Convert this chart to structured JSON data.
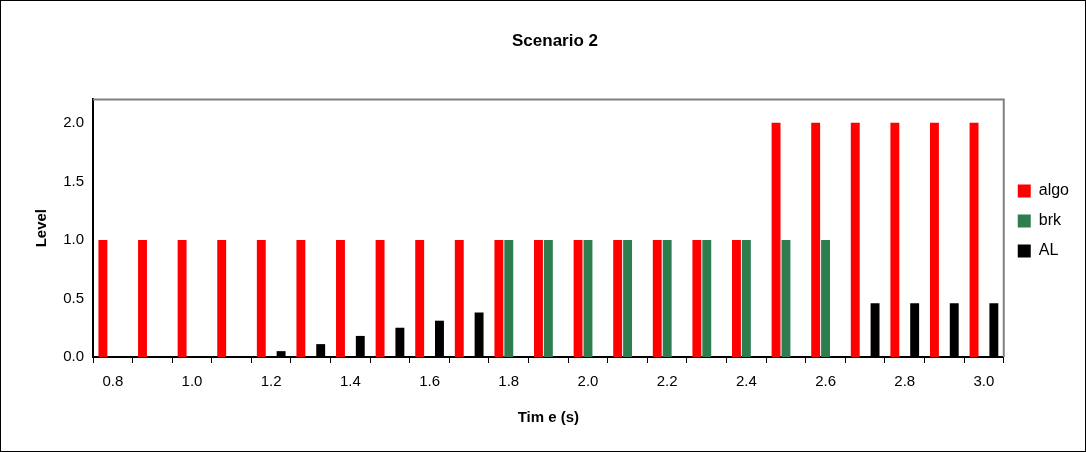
{
  "chart_data": {
    "type": "bar",
    "title": "Scenario 2",
    "xlabel": "Tim e (s)",
    "ylabel": "Level",
    "categories": [
      "0.8",
      null,
      "1.0",
      null,
      "1.2",
      null,
      "1.4",
      null,
      "1.6",
      null,
      "1.8",
      null,
      "2.0",
      null,
      "2.2",
      null,
      "2.4",
      null,
      "2.6",
      null,
      "2.8",
      null,
      "3.0"
    ],
    "series": [
      {
        "name": "algo",
        "color": "#ff0000",
        "values": [
          1,
          1,
          1,
          1,
          1,
          1,
          1,
          1,
          1,
          1,
          1,
          1,
          1,
          1,
          1,
          1,
          1,
          2,
          2,
          2,
          2,
          2,
          2
        ]
      },
      {
        "name": "brk",
        "color": "#2e7d4f",
        "values": [
          0,
          0,
          0,
          0,
          0,
          0,
          0,
          0,
          0,
          0,
          1,
          1,
          1,
          1,
          1,
          1,
          1,
          1,
          1,
          0,
          0,
          0,
          0
        ]
      },
      {
        "name": "AL",
        "color": "#000000",
        "values": [
          0,
          0,
          0,
          0,
          0.05,
          0.11,
          0.18,
          0.25,
          0.31,
          0.38,
          0,
          0,
          0,
          0,
          0,
          0,
          0,
          0,
          0,
          0.46,
          0.46,
          0.46,
          0.46
        ]
      }
    ],
    "ylim": [
      0,
      2.2
    ],
    "yticks": [
      {
        "value": 0,
        "label": "0.0"
      },
      {
        "value": 0.5,
        "label": "0.5"
      },
      {
        "value": 1,
        "label": "1.0"
      },
      {
        "value": 1.5,
        "label": "1.5"
      },
      {
        "value": 2,
        "label": "2.0"
      }
    ],
    "grid": false,
    "legend": "right"
  }
}
